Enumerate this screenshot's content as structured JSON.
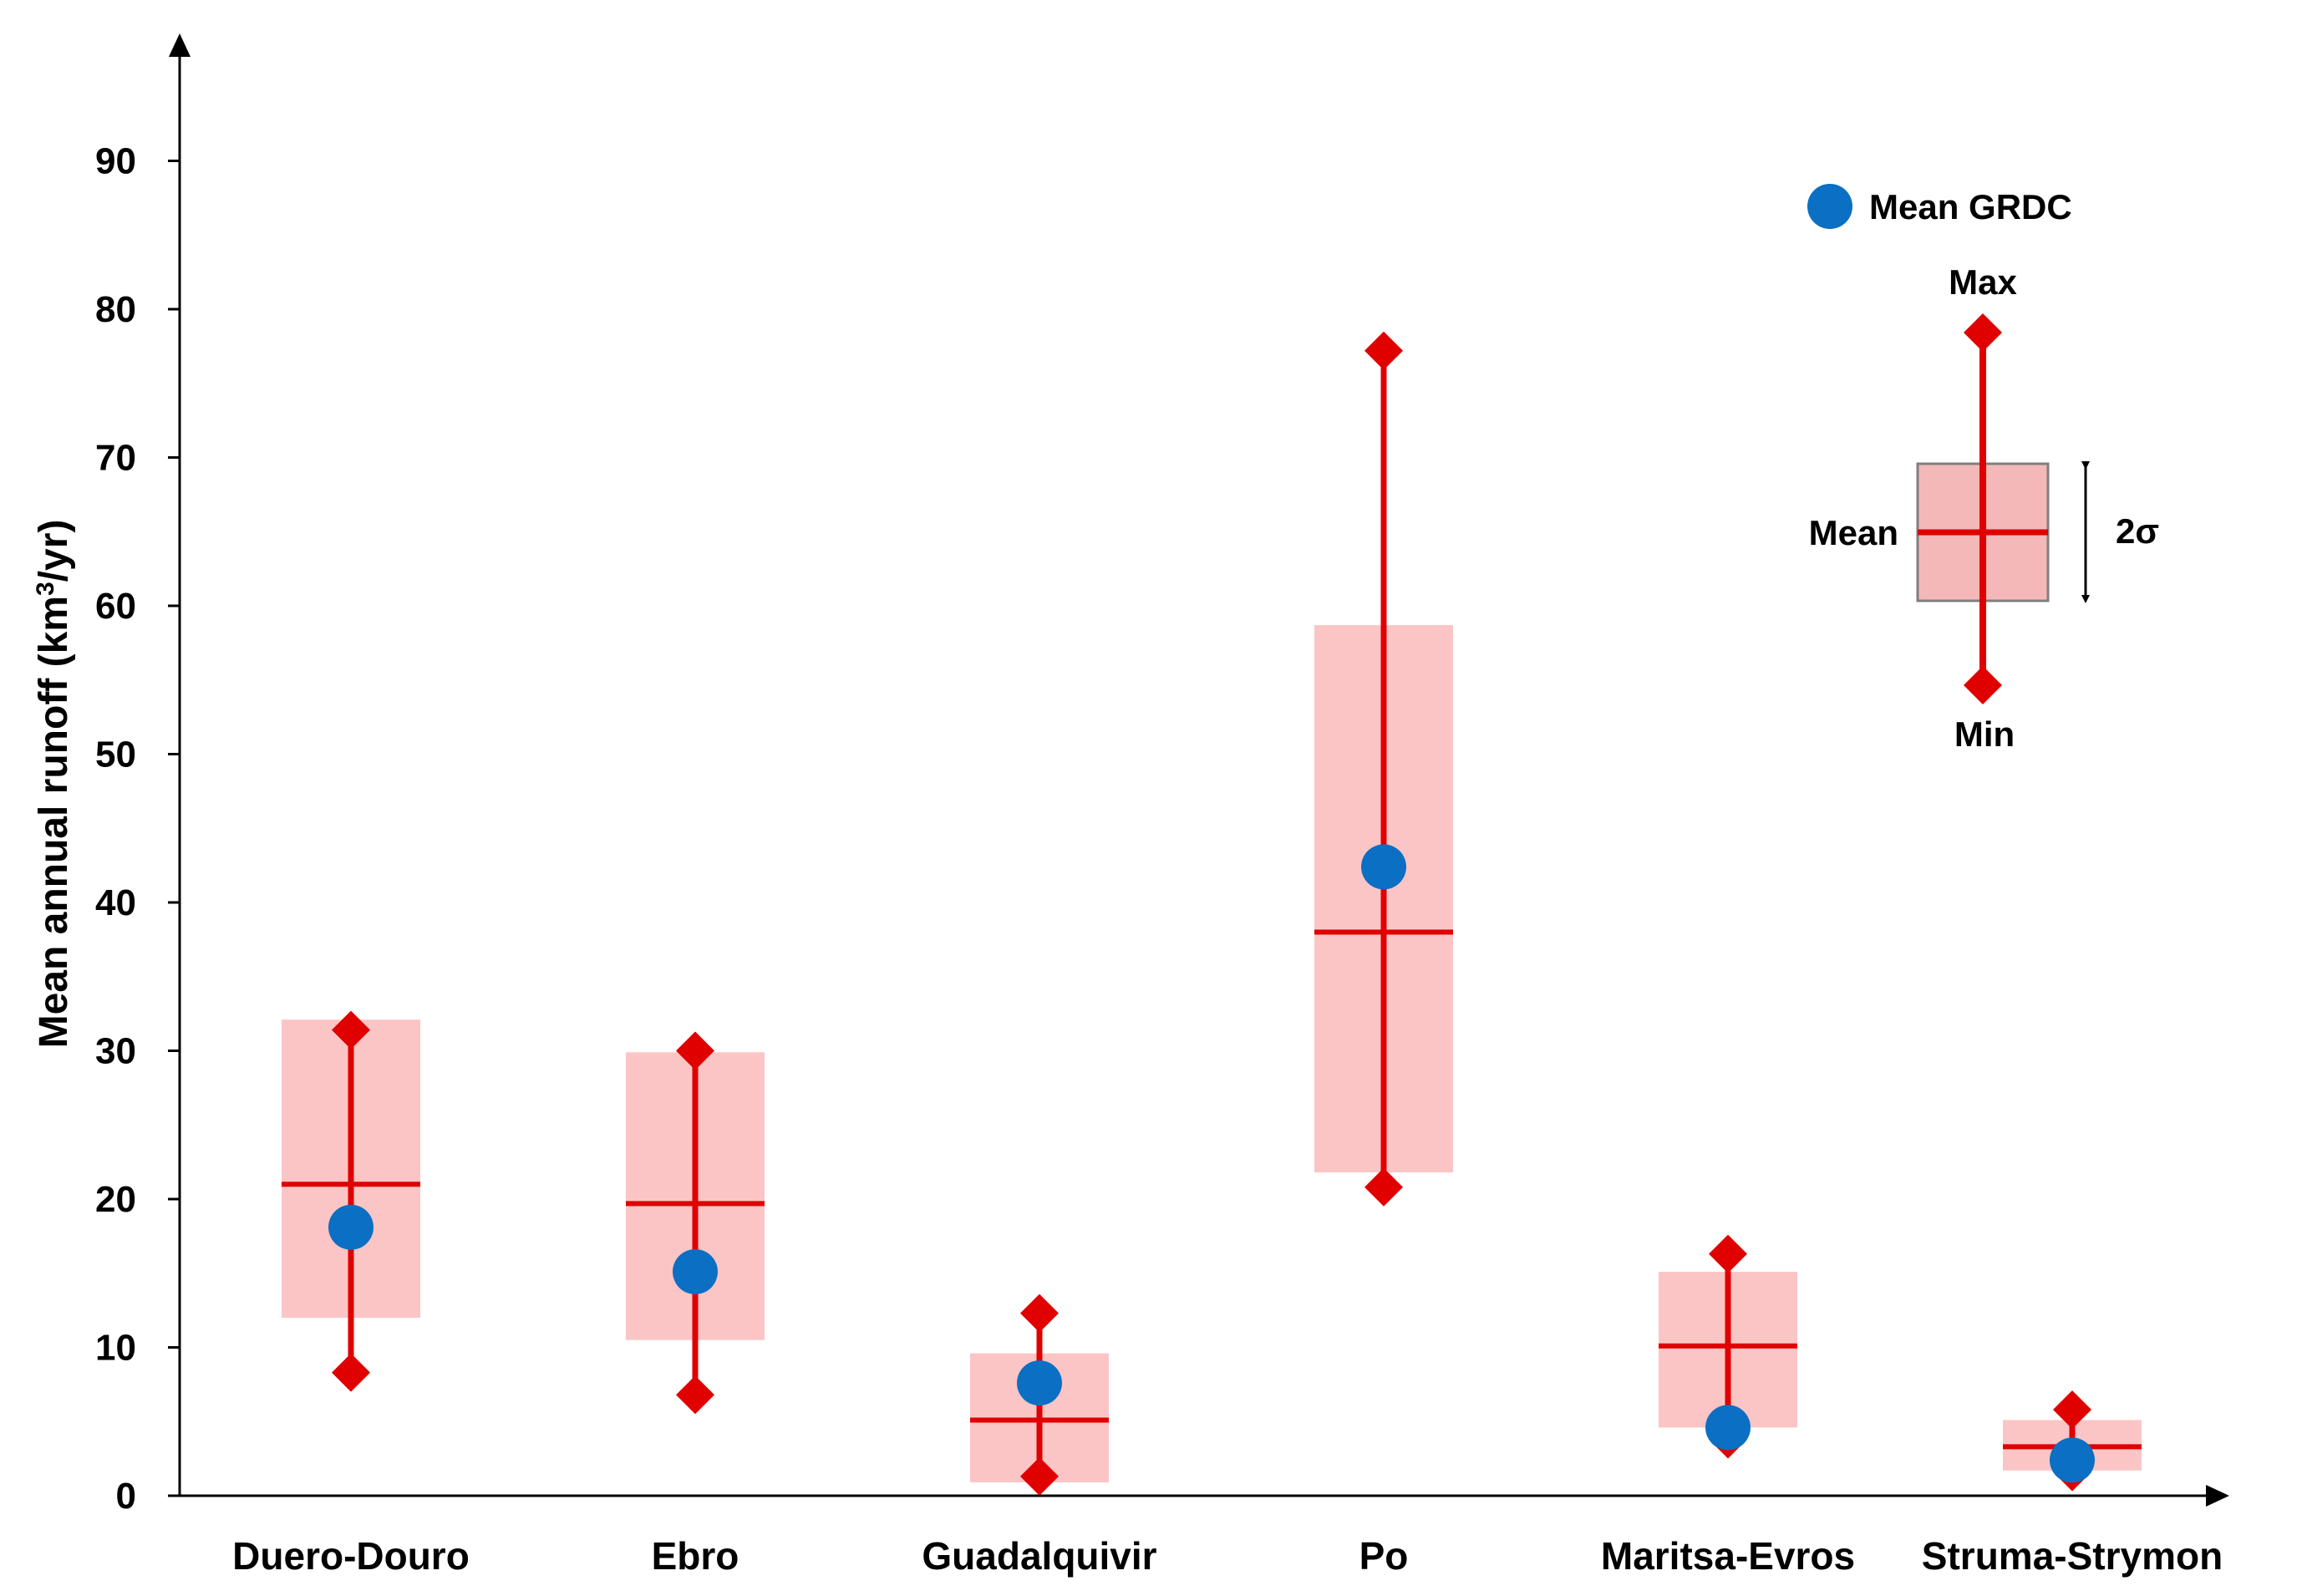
{
  "chart_data": {
    "type": "box",
    "title": "",
    "xlabel": "",
    "ylabel": "Mean annual runoff (km³/yr)",
    "ylabel_parts": {
      "before": "Mean annual runoff (km",
      "sup": "3",
      "after": "/yr)"
    },
    "ylim": [
      0,
      90
    ],
    "yticks": [
      "0",
      "10",
      "20",
      "30",
      "40",
      "50",
      "60",
      "70",
      "80",
      "90"
    ],
    "grid": false,
    "categories": [
      "Duero-Douro",
      "Ebro",
      "Guadalquivir",
      "Po",
      "Maritsa-Evros",
      "Struma-Strymon"
    ],
    "series": [
      {
        "stat": "mean",
        "values": [
          21,
          19.7,
          5.1,
          38,
          10.1,
          3.3
        ]
      },
      {
        "stat": "mean_minus_sigma",
        "values": [
          12,
          10.5,
          0.9,
          21.8,
          4.6,
          1.7
        ]
      },
      {
        "stat": "mean_plus_sigma",
        "values": [
          32.1,
          29.9,
          9.6,
          58.7,
          15.1,
          5.1
        ]
      },
      {
        "stat": "min",
        "values": [
          8.3,
          6.8,
          1.3,
          20.8,
          3.8,
          1.6
        ]
      },
      {
        "stat": "max",
        "values": [
          31.4,
          30,
          12.3,
          77.2,
          16.3,
          5.8
        ]
      },
      {
        "name": "Mean GRDC",
        "values": [
          18.1,
          15.1,
          7.6,
          42.4,
          4.6,
          2.4
        ]
      }
    ],
    "legend": {
      "position": "top-right",
      "grdc_label": "Mean GRDC",
      "max_label": "Max",
      "min_label": "Min",
      "mean_label": "Mean",
      "sigma_label": "2σ"
    },
    "colors": {
      "box_fill": "#fcc5c5",
      "box_stroke": "#7f7f7f",
      "mean_line": "#e00000",
      "marker": "#e00000",
      "grdc": "#0b6fc4",
      "axis": "#000000"
    }
  }
}
